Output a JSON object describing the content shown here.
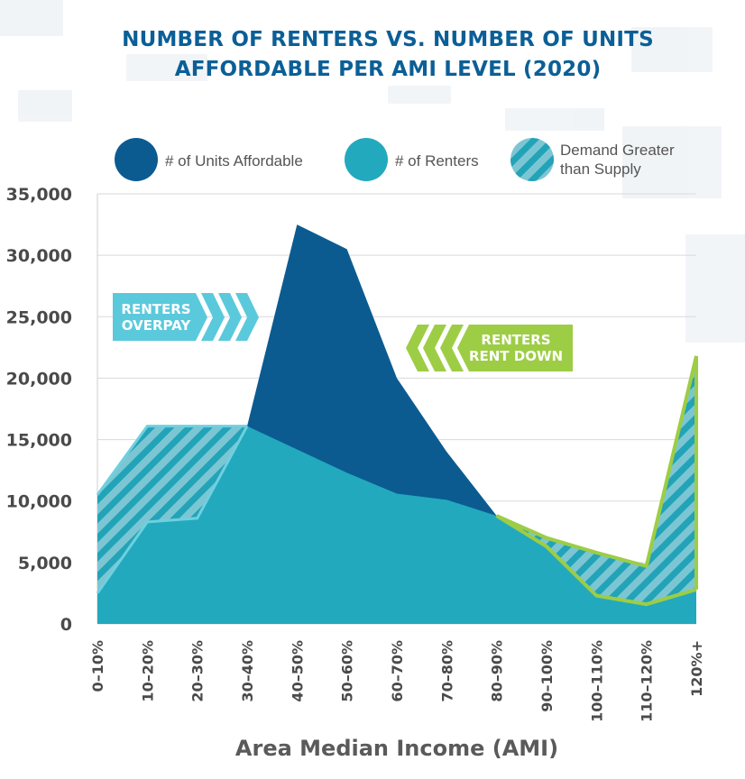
{
  "title_lines": [
    "NUMBER OF RENTERS VS. NUMBER OF UNITS",
    "AFFORDABLE PER AMI LEVEL (2020)"
  ],
  "legend": {
    "units": "# of Units Affordable",
    "renters": "# of Renters",
    "demand_lines": [
      "Demand Greater",
      "than Supply"
    ]
  },
  "annotations": {
    "overpay": [
      "RENTERS",
      "OVERPAY"
    ],
    "rentdown": [
      "RENTERS",
      "RENT DOWN"
    ]
  },
  "colors": {
    "title": "#0b5f96",
    "units": "#0b5b91",
    "renters": "#22a9be",
    "hatch_light": "#7cc6d3",
    "hatch_dark": "#22a3b8",
    "overpay": "#5bc9dc",
    "rentdown": "#9dcd45"
  },
  "chart_data": {
    "type": "area",
    "title": "NUMBER OF RENTERS VS. NUMBER OF UNITS AFFORDABLE PER AMI LEVEL (2020)",
    "xlabel": "Area Median Income (AMI)",
    "ylabel": "",
    "ylim": [
      0,
      35000
    ],
    "yticks": [
      "0",
      "5,000",
      "10,000",
      "15,000",
      "20,000",
      "25,000",
      "30,000",
      "35,000"
    ],
    "categories": [
      "0–10%",
      "10–20%",
      "20–30%",
      "30–40%",
      "40–50%",
      "50–60%",
      "60–70%",
      "70–80%",
      "80–90%",
      "90–100%",
      "100–110%",
      "110–120%",
      "120%+"
    ],
    "series": [
      {
        "name": "# of Units Affordable",
        "values": [
          2500,
          8300,
          8600,
          16100,
          32500,
          30500,
          20000,
          14000,
          8800,
          6300,
          2300,
          1600,
          2800
        ]
      },
      {
        "name": "# of Renters",
        "values": [
          10500,
          16100,
          16100,
          16100,
          14200,
          12300,
          10600,
          10100,
          8800,
          7000,
          5800,
          4700,
          21800
        ]
      }
    ],
    "grid": true,
    "legend_position": "top"
  }
}
